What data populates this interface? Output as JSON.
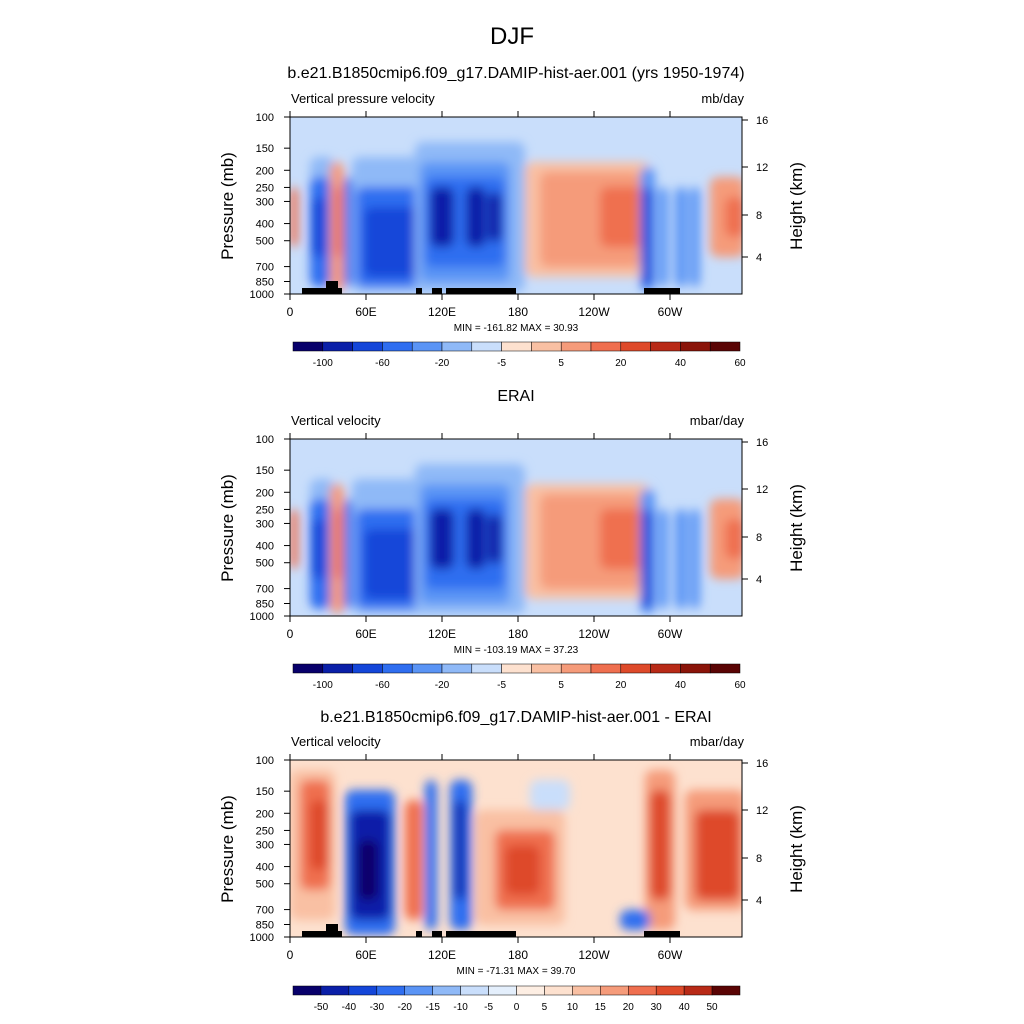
{
  "figure": {
    "title": "DJF"
  },
  "panels": [
    {
      "title": "b.e21.B1850cmip6.f09_g17.DAMIP-hist-aer.001 (yrs 1950-1974)",
      "left_label": "Vertical pressure velocity",
      "right_label": "mb/day",
      "ylabel": "Pressure (mb)",
      "y2label": "Height (km)",
      "stats": "MIN = -161.82  MAX =  30.93",
      "colorbar_labels": [
        "-100",
        "-60",
        "-20",
        "-5",
        "5",
        "20",
        "40",
        "60"
      ]
    },
    {
      "title": "ERAI",
      "left_label": "Vertical velocity",
      "right_label": "mbar/day",
      "ylabel": "Pressure (mb)",
      "y2label": "Height (km)",
      "stats": "MIN = -103.19  MAX =  37.23",
      "colorbar_labels": [
        "-100",
        "-60",
        "-20",
        "-5",
        "5",
        "20",
        "40",
        "60"
      ]
    },
    {
      "title": "b.e21.B1850cmip6.f09_g17.DAMIP-hist-aer.001 - ERAI",
      "left_label": "Vertical velocity",
      "right_label": "mbar/day",
      "ylabel": "Pressure (mb)",
      "y2label": "Height (km)",
      "stats": "MIN = -71.31  MAX =  39.70",
      "colorbar_labels": [
        "-50",
        "-40",
        "-30",
        "-20",
        "-15",
        "-10",
        "-5",
        "0",
        "5",
        "10",
        "15",
        "20",
        "30",
        "40",
        "50"
      ]
    }
  ],
  "chart_data": {
    "type": "heatmap",
    "title": "DJF",
    "x_ticks": [
      "0",
      "60E",
      "120E",
      "180",
      "120W",
      "60W"
    ],
    "y_ticks": [
      "100",
      "150",
      "200",
      "250",
      "300",
      "400",
      "500",
      "700",
      "850",
      "1000"
    ],
    "y2_ticks": [
      "16",
      "12",
      "8",
      "4"
    ],
    "palette_model_obs": [
      "#08006b",
      "#0a1fa8",
      "#1446d9",
      "#2f6ef0",
      "#5a94f5",
      "#8fb9f7",
      "#c9defb",
      "#fde1cf",
      "#f9c0a3",
      "#f59b7a",
      "#ef6f4f",
      "#de4a2a",
      "#b82a17",
      "#8a1409",
      "#5a0404"
    ],
    "palette_diff": [
      "#08006b",
      "#0a1fa8",
      "#1446d9",
      "#2f6ef0",
      "#5a94f5",
      "#8fb9f7",
      "#c9defb",
      "#e4effc",
      "#fdeee3",
      "#fde1cf",
      "#f9c0a3",
      "#f59b7a",
      "#ef6f4f",
      "#de4a2a",
      "#b82a17",
      "#5a0404"
    ],
    "panels": [
      {
        "name": "b.e21.B1850cmip6.f09_g17.DAMIP-hist-aer.001 (yrs 1950-1974)",
        "min": -161.82,
        "max": 30.93,
        "contour_levels": [
          -100,
          -60,
          -20,
          -5,
          5,
          20,
          40,
          60
        ]
      },
      {
        "name": "ERAI",
        "min": -103.19,
        "max": 37.23,
        "contour_levels": [
          -100,
          -60,
          -20,
          -5,
          5,
          20,
          40,
          60
        ]
      },
      {
        "name": "b.e21.B1850cmip6.f09_g17.DAMIP-hist-aer.001 - ERAI",
        "min": -71.31,
        "max": 39.7,
        "contour_levels": [
          -50,
          -40,
          -30,
          -20,
          -15,
          -10,
          -5,
          0,
          5,
          10,
          15,
          20,
          30,
          40,
          50
        ]
      }
    ]
  }
}
